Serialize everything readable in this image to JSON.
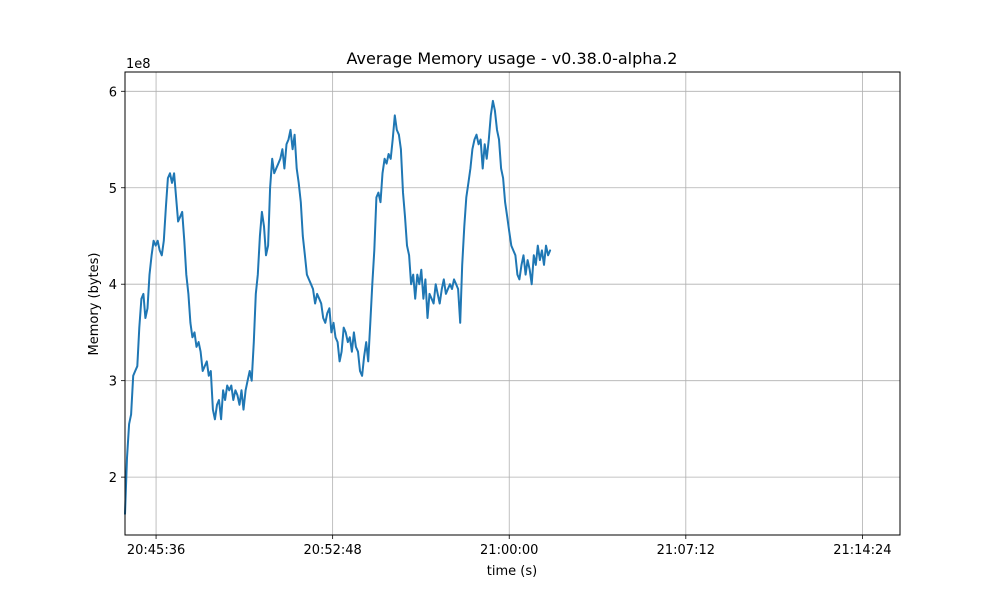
{
  "chart_data": {
    "type": "line",
    "title": "Average Memory usage  -  v0.38.0-alpha.2",
    "xlabel": "time (s)",
    "ylabel": "Memory (bytes)",
    "y_offset_label": "1e8",
    "y_multiplier": 100000000,
    "x_start": "20:44:20",
    "x_sample_step_seconds": 5,
    "xlim": [
      "20:44:20",
      "21:15:56"
    ],
    "ylim": [
      1.4,
      6.2
    ],
    "x_ticks": [
      {
        "value": "20:45:36",
        "label": "20:45:36"
      },
      {
        "value": "20:52:48",
        "label": "20:52:48"
      },
      {
        "value": "21:00:00",
        "label": "21:00:00"
      },
      {
        "value": "21:07:12",
        "label": "21:07:12"
      },
      {
        "value": "21:14:24",
        "label": "21:14:24"
      }
    ],
    "y_ticks": [
      {
        "value": 2,
        "label": "2"
      },
      {
        "value": 3,
        "label": "3"
      },
      {
        "value": 4,
        "label": "4"
      },
      {
        "value": 5,
        "label": "5"
      },
      {
        "value": 6,
        "label": "6"
      }
    ],
    "grid": true,
    "line_color": "#1f77b4",
    "series": [
      {
        "values": [
          1.62,
          2.2,
          2.55,
          2.65,
          3.05,
          3.1,
          3.15,
          3.55,
          3.85,
          3.9,
          3.65,
          3.75,
          4.1,
          4.3,
          4.45,
          4.4,
          4.45,
          4.35,
          4.3,
          4.45,
          4.8,
          5.1,
          5.15,
          5.05,
          5.15,
          4.9,
          4.65,
          4.7,
          4.75,
          4.45,
          4.1,
          3.9,
          3.6,
          3.45,
          3.5,
          3.35,
          3.4,
          3.3,
          3.1,
          3.15,
          3.2,
          3.05,
          3.1,
          2.7,
          2.6,
          2.75,
          2.8,
          2.6,
          2.9,
          2.8,
          2.95,
          2.9,
          2.95,
          2.8,
          2.9,
          2.85,
          2.75,
          2.9,
          2.7,
          2.9,
          3.0,
          3.1,
          3.0,
          3.4,
          3.9,
          4.1,
          4.5,
          4.75,
          4.6,
          4.3,
          4.4,
          5.0,
          5.3,
          5.15,
          5.2,
          5.25,
          5.3,
          5.4,
          5.2,
          5.45,
          5.5,
          5.6,
          5.4,
          5.55,
          5.2,
          5.05,
          4.85,
          4.5,
          4.3,
          4.1,
          4.05,
          4.0,
          3.95,
          3.8,
          3.9,
          3.85,
          3.8,
          3.65,
          3.6,
          3.7,
          3.75,
          3.5,
          3.6,
          3.45,
          3.4,
          3.2,
          3.3,
          3.55,
          3.5,
          3.4,
          3.45,
          3.3,
          3.5,
          3.35,
          3.3,
          3.1,
          3.05,
          3.25,
          3.4,
          3.2,
          3.6,
          4.0,
          4.35,
          4.9,
          4.95,
          4.85,
          5.15,
          5.3,
          5.25,
          5.35,
          5.3,
          5.5,
          5.75,
          5.6,
          5.55,
          5.4,
          4.95,
          4.7,
          4.4,
          4.3,
          4.0,
          4.1,
          3.85,
          4.1,
          4.0,
          4.15,
          3.85,
          4.05,
          3.65,
          3.9,
          3.85,
          3.8,
          4.0,
          3.9,
          3.8,
          3.95,
          4.05,
          3.9,
          3.95,
          4.0,
          3.95,
          4.05,
          4.0,
          3.95,
          3.6,
          4.2,
          4.6,
          4.9,
          5.05,
          5.2,
          5.4,
          5.5,
          5.55,
          5.45,
          5.5,
          5.2,
          5.45,
          5.3,
          5.5,
          5.75,
          5.9,
          5.8,
          5.6,
          5.5,
          5.2,
          5.1,
          4.85,
          4.7,
          4.55,
          4.4,
          4.35,
          4.3,
          4.1,
          4.05,
          4.2,
          4.3,
          4.1,
          4.25,
          4.15,
          4.0,
          4.3,
          4.2,
          4.4,
          4.25,
          4.35,
          4.2,
          4.4,
          4.3,
          4.35
        ]
      }
    ]
  }
}
